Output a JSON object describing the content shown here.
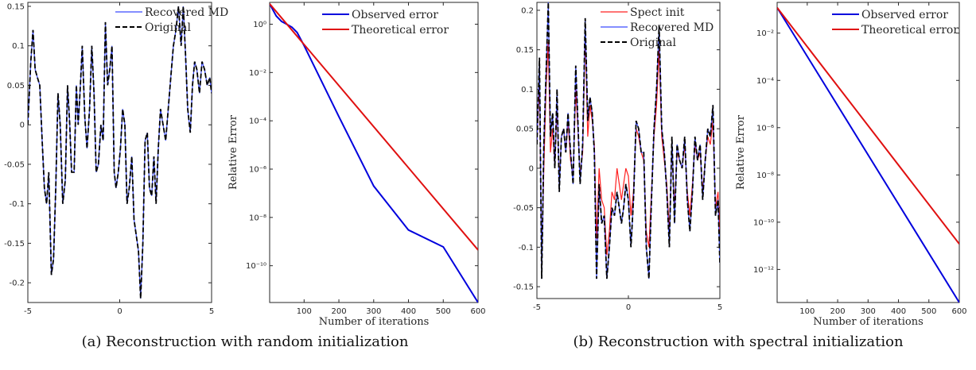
{
  "captions": {
    "a": "(a) Reconstruction with random initialization",
    "b": "(b) Reconstruction with spectral initialization"
  },
  "colors": {
    "recovered": "#3a4bff",
    "original": "#000000",
    "spect": "#ff2020",
    "observed": "#0000dd",
    "theoretical": "#e01010"
  },
  "chart_data": [
    {
      "id": "a-left",
      "type": "line",
      "xlim": [
        -5,
        5
      ],
      "ylim": [
        -0.225,
        0.155
      ],
      "xticks": [
        -5,
        0,
        5
      ],
      "xtick_labels": [
        "-5",
        "0",
        "5"
      ],
      "yticks": [
        -0.2,
        -0.15,
        -0.1,
        -0.05,
        0,
        0.05,
        0.1,
        0.15
      ],
      "ytick_labels": [
        "-0.2",
        "-0.15",
        "-0.1",
        "-0.05",
        "0",
        "0.05",
        "0.1",
        "0.15"
      ],
      "xlabel": "",
      "ylabel": "",
      "legend_placement": "top-right",
      "x": [
        -5,
        -4.84,
        -4.72,
        -4.6,
        -4.48,
        -4.35,
        -4.22,
        -4.1,
        -3.98,
        -3.86,
        -3.72,
        -3.6,
        -3.48,
        -3.36,
        -3.24,
        -3.1,
        -2.96,
        -2.84,
        -2.72,
        -2.62,
        -2.48,
        -2.36,
        -2.26,
        -2.14,
        -2.04,
        -1.9,
        -1.78,
        -1.64,
        -1.52,
        -1.4,
        -1.28,
        -1.16,
        -1.02,
        -0.9,
        -0.78,
        -0.66,
        -0.54,
        -0.42,
        -0.3,
        -0.2,
        -0.08,
        0.04,
        0.16,
        0.28,
        0.4,
        0.52,
        0.66,
        0.78,
        0.9,
        1.02,
        1.14,
        1.26,
        1.38,
        1.5,
        1.62,
        1.74,
        1.86,
        1.98,
        2.1,
        2.22,
        2.36,
        2.5,
        2.64,
        2.78,
        2.92,
        3.06,
        3.2,
        3.34,
        3.46,
        3.58,
        3.7,
        3.84,
        3.96,
        4.08,
        4.2,
        4.34,
        4.48,
        4.62,
        4.76,
        4.9,
        5
      ],
      "series": [
        {
          "name": "Recovered MD",
          "style": "solid",
          "y": [
            0.0,
            0.08,
            0.12,
            0.07,
            0.06,
            0.05,
            -0.02,
            -0.08,
            -0.1,
            -0.06,
            -0.19,
            -0.17,
            -0.08,
            0.04,
            0.0,
            -0.1,
            -0.07,
            0.05,
            0.0,
            -0.06,
            -0.06,
            0.05,
            0.0,
            0.05,
            0.1,
            0.01,
            -0.03,
            0.02,
            0.1,
            0.04,
            -0.06,
            -0.05,
            0.0,
            -0.02,
            0.13,
            0.05,
            0.07,
            0.1,
            -0.06,
            -0.08,
            -0.06,
            -0.03,
            0.02,
            0.0,
            -0.1,
            -0.08,
            -0.04,
            -0.12,
            -0.14,
            -0.16,
            -0.22,
            -0.15,
            -0.02,
            -0.01,
            -0.08,
            -0.09,
            -0.04,
            -0.1,
            -0.03,
            0.02,
            0.0,
            -0.02,
            0.02,
            0.06,
            0.1,
            0.12,
            0.15,
            0.1,
            0.15,
            0.09,
            0.02,
            -0.01,
            0.05,
            0.08,
            0.07,
            0.04,
            0.08,
            0.07,
            0.05,
            0.06,
            0.04
          ]
        },
        {
          "name": "Original",
          "style": "dashed",
          "y": [
            0.0,
            0.08,
            0.12,
            0.07,
            0.06,
            0.05,
            -0.02,
            -0.08,
            -0.1,
            -0.06,
            -0.19,
            -0.17,
            -0.08,
            0.04,
            0.0,
            -0.1,
            -0.07,
            0.05,
            0.0,
            -0.06,
            -0.06,
            0.05,
            0.0,
            0.05,
            0.1,
            0.01,
            -0.03,
            0.02,
            0.1,
            0.04,
            -0.06,
            -0.05,
            0.0,
            -0.02,
            0.13,
            0.05,
            0.07,
            0.1,
            -0.06,
            -0.08,
            -0.06,
            -0.03,
            0.02,
            0.0,
            -0.1,
            -0.08,
            -0.04,
            -0.12,
            -0.14,
            -0.16,
            -0.22,
            -0.15,
            -0.02,
            -0.01,
            -0.08,
            -0.09,
            -0.04,
            -0.1,
            -0.03,
            0.02,
            0.0,
            -0.02,
            0.02,
            0.06,
            0.1,
            0.12,
            0.15,
            0.1,
            0.15,
            0.09,
            0.02,
            -0.01,
            0.05,
            0.08,
            0.07,
            0.04,
            0.08,
            0.07,
            0.05,
            0.06,
            0.04
          ]
        }
      ]
    },
    {
      "id": "a-right",
      "type": "line",
      "scale_y": "log",
      "xlim": [
        1,
        600
      ],
      "ylim": [
        3e-12,
        8
      ],
      "xticks": [
        100,
        200,
        300,
        400,
        500,
        600
      ],
      "xtick_labels": [
        "100",
        "200",
        "300",
        "400",
        "500",
        "600"
      ],
      "yticks": [
        1,
        0.01,
        0.0001,
        1e-06,
        1e-08,
        1e-10
      ],
      "ytick_labels": [
        "10⁰",
        "10⁻²",
        "10⁻⁴",
        "10⁻⁶",
        "10⁻⁸",
        "10⁻¹⁰"
      ],
      "xlabel": "Number of iterations",
      "ylabel": "Relative Error",
      "legend_placement": "top-right",
      "series": [
        {
          "name": "Observed error",
          "x": [
            1,
            10,
            20,
            35,
            50,
            65,
            80,
            100,
            200,
            300,
            400,
            500,
            600
          ],
          "y": [
            7,
            4,
            2.2,
            1.3,
            1.0,
            0.75,
            0.45,
            0.13,
            0.00015,
            2e-07,
            3e-09,
            6e-10,
            3e-12
          ]
        },
        {
          "name": "Theoretical error",
          "x": [
            1,
            600
          ],
          "y": [
            7,
            4.5e-10
          ]
        }
      ]
    },
    {
      "id": "b-left",
      "type": "line",
      "xlim": [
        -5,
        5
      ],
      "ylim": [
        -0.165,
        0.21
      ],
      "xticks": [
        -5,
        0,
        5
      ],
      "xtick_labels": [
        "-5",
        "0",
        "5"
      ],
      "yticks": [
        -0.15,
        -0.1,
        -0.05,
        0,
        0.05,
        0.1,
        0.15,
        0.2
      ],
      "ytick_labels": [
        "-0.15",
        "-0.1",
        "-0.05",
        "0",
        "0.05",
        "0.1",
        "0.15",
        "0.2"
      ],
      "xlabel": "",
      "ylabel": "",
      "legend_placement": "top-right",
      "x": [
        -5,
        -4.86,
        -4.74,
        -4.62,
        -4.5,
        -4.38,
        -4.26,
        -4.14,
        -4.02,
        -3.9,
        -3.78,
        -3.66,
        -3.54,
        -3.42,
        -3.3,
        -3.16,
        -3.02,
        -2.88,
        -2.76,
        -2.64,
        -2.5,
        -2.36,
        -2.22,
        -2.1,
        -1.98,
        -1.86,
        -1.74,
        -1.6,
        -1.46,
        -1.32,
        -1.18,
        -1.04,
        -0.9,
        -0.76,
        -0.62,
        -0.5,
        -0.38,
        -0.26,
        -0.14,
        0.0,
        0.14,
        0.28,
        0.42,
        0.56,
        0.7,
        0.84,
        0.98,
        1.12,
        1.26,
        1.4,
        1.54,
        1.68,
        1.82,
        1.96,
        2.1,
        2.24,
        2.38,
        2.52,
        2.66,
        2.8,
        2.94,
        3.08,
        3.22,
        3.36,
        3.5,
        3.64,
        3.78,
        3.92,
        4.06,
        4.2,
        4.34,
        4.48,
        4.62,
        4.76,
        4.9,
        5
      ],
      "series": [
        {
          "name": "Spect init",
          "style": "solid",
          "y": [
            0.03,
            0.11,
            -0.12,
            0.0,
            0.1,
            0.16,
            0.02,
            0.05,
            0.0,
            0.08,
            -0.02,
            0.04,
            0.05,
            0.02,
            0.06,
            0.01,
            -0.01,
            0.1,
            0.05,
            -0.01,
            0.02,
            0.17,
            0.04,
            0.08,
            0.06,
            0.03,
            -0.09,
            0.0,
            -0.04,
            -0.05,
            -0.11,
            -0.08,
            -0.03,
            -0.04,
            0.0,
            -0.02,
            -0.04,
            -0.02,
            0.0,
            -0.01,
            -0.06,
            -0.03,
            0.05,
            0.04,
            0.02,
            0.01,
            -0.08,
            -0.1,
            -0.03,
            0.04,
            0.08,
            0.15,
            0.04,
            0.01,
            -0.02,
            -0.08,
            0.03,
            -0.05,
            0.02,
            0.01,
            0.0,
            0.03,
            -0.03,
            -0.06,
            -0.02,
            0.03,
            0.01,
            0.02,
            -0.03,
            0.01,
            0.04,
            0.03,
            0.06,
            -0.05,
            -0.03,
            -0.08
          ]
        },
        {
          "name": "Recovered MD",
          "style": "solid",
          "y": [
            0.03,
            0.14,
            -0.14,
            0.03,
            0.12,
            0.21,
            0.04,
            0.07,
            0.0,
            0.1,
            -0.03,
            0.04,
            0.05,
            0.02,
            0.07,
            0.02,
            -0.02,
            0.13,
            0.06,
            -0.02,
            0.03,
            0.19,
            0.06,
            0.09,
            0.07,
            0.02,
            -0.14,
            -0.02,
            -0.07,
            -0.06,
            -0.14,
            -0.1,
            -0.05,
            -0.06,
            -0.03,
            -0.05,
            -0.07,
            -0.05,
            -0.02,
            -0.04,
            -0.1,
            -0.04,
            0.06,
            0.05,
            0.02,
            0.02,
            -0.1,
            -0.14,
            -0.04,
            0.05,
            0.1,
            0.18,
            0.05,
            0.02,
            -0.03,
            -0.1,
            0.04,
            -0.07,
            0.03,
            0.01,
            0.0,
            0.04,
            -0.04,
            -0.08,
            -0.03,
            0.04,
            0.01,
            0.03,
            -0.04,
            0.01,
            0.05,
            0.04,
            0.08,
            -0.06,
            -0.04,
            -0.12
          ]
        },
        {
          "name": "Original",
          "style": "dashed",
          "y": [
            0.03,
            0.14,
            -0.14,
            0.03,
            0.12,
            0.21,
            0.04,
            0.07,
            0.0,
            0.1,
            -0.03,
            0.04,
            0.05,
            0.02,
            0.07,
            0.02,
            -0.02,
            0.13,
            0.06,
            -0.02,
            0.03,
            0.19,
            0.06,
            0.09,
            0.07,
            0.02,
            -0.14,
            -0.02,
            -0.07,
            -0.06,
            -0.14,
            -0.1,
            -0.05,
            -0.06,
            -0.03,
            -0.05,
            -0.07,
            -0.05,
            -0.02,
            -0.04,
            -0.1,
            -0.04,
            0.06,
            0.05,
            0.02,
            0.02,
            -0.1,
            -0.14,
            -0.04,
            0.05,
            0.1,
            0.18,
            0.05,
            0.02,
            -0.03,
            -0.1,
            0.04,
            -0.07,
            0.03,
            0.01,
            0.0,
            0.04,
            -0.04,
            -0.08,
            -0.03,
            0.04,
            0.01,
            0.03,
            -0.04,
            0.01,
            0.05,
            0.04,
            0.08,
            -0.06,
            -0.04,
            -0.12
          ]
        }
      ]
    },
    {
      "id": "b-right",
      "type": "line",
      "scale_y": "log",
      "xlim": [
        1,
        600
      ],
      "ylim": [
        4e-14,
        0.2
      ],
      "xticks": [
        100,
        200,
        300,
        400,
        500,
        600
      ],
      "xtick_labels": [
        "100",
        "200",
        "300",
        "400",
        "500",
        "600"
      ],
      "yticks": [
        0.01,
        0.0001,
        1e-06,
        1e-08,
        1e-10,
        1e-12
      ],
      "ytick_labels": [
        "10⁻²",
        "10⁻⁴",
        "10⁻⁶",
        "10⁻⁸",
        "10⁻¹⁰",
        "10⁻¹²"
      ],
      "xlabel": "Number of iterations",
      "ylabel": "Relative Error",
      "legend_placement": "top-right",
      "series": [
        {
          "name": "Observed error",
          "x": [
            1,
            600
          ],
          "y": [
            0.12,
            4e-14
          ]
        },
        {
          "name": "Theoretical error",
          "x": [
            1,
            600
          ],
          "y": [
            0.12,
            1.2e-11
          ]
        }
      ]
    }
  ]
}
